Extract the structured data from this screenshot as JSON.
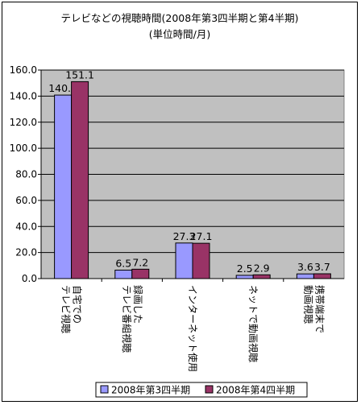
{
  "chart_data": {
    "type": "bar",
    "title": "テレビなどの視聴時間(2008年第3四半期と第4半期)",
    "subtitle": "(単位時間/月)",
    "categories": [
      "自宅での\nテレビ視聴",
      "録画した\nテレビ番組視聴",
      "インターネット使用",
      "ネットで動画視聴",
      "携帯端末で\n動画視聴"
    ],
    "series": [
      {
        "name": "2008年第3四半期",
        "values": [
          140.8,
          6.5,
          27.3,
          2.5,
          3.6
        ]
      },
      {
        "name": "2008年第4四半期",
        "values": [
          151.1,
          7.2,
          27.1,
          2.9,
          3.7
        ]
      }
    ],
    "ylim": [
      0,
      160
    ],
    "yticks": [
      "0.0",
      "20.0",
      "40.0",
      "60.0",
      "80.0",
      "100.0",
      "120.0",
      "140.0",
      "160.0"
    ],
    "grid": true,
    "legend": "bottom",
    "colors": {
      "series1": "#9999ff",
      "series2": "#993366",
      "plot_bg": "#c0c0c0"
    }
  }
}
